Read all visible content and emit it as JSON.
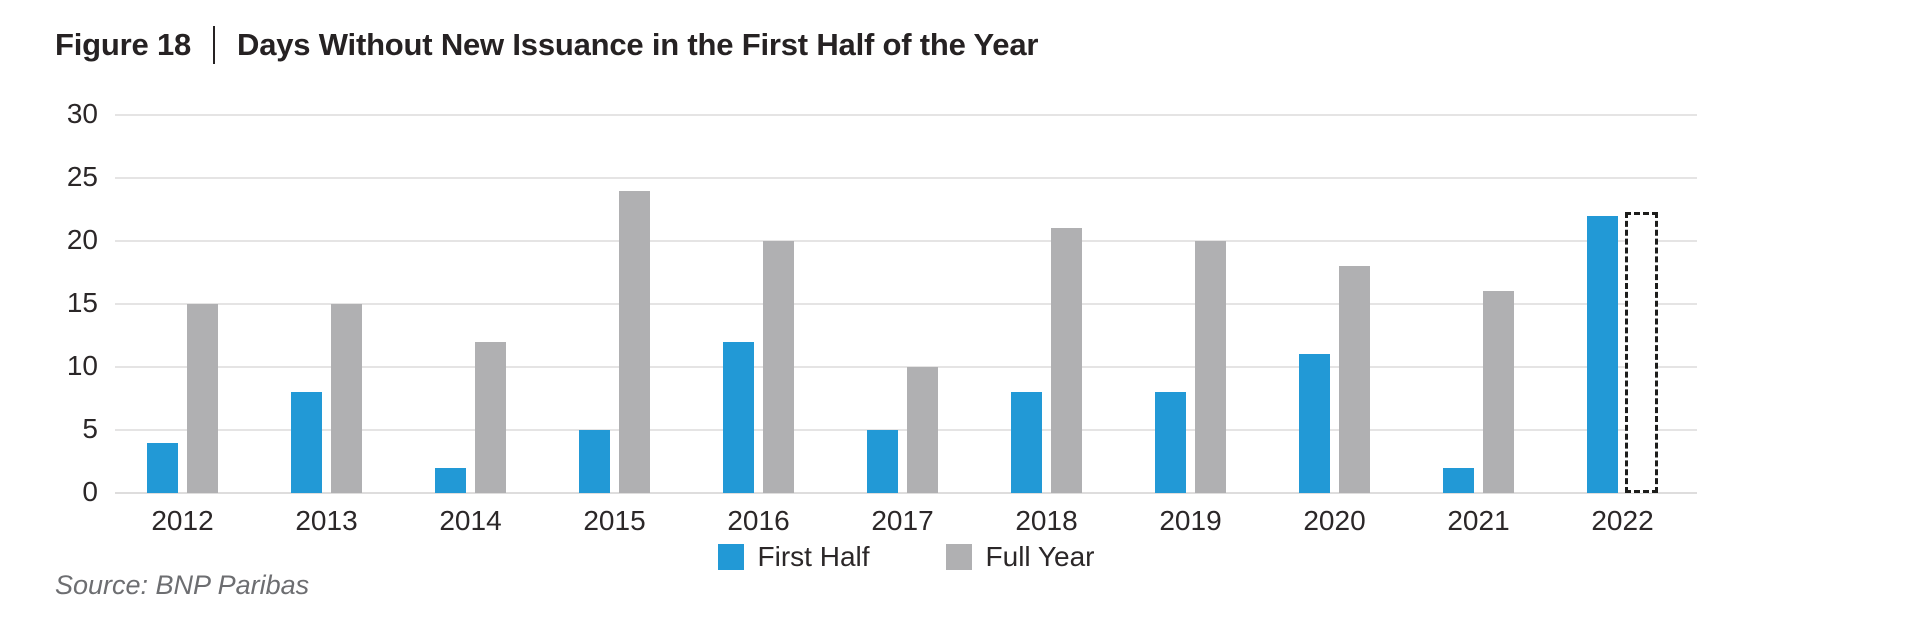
{
  "title": {
    "figure_label": "Figure 18",
    "separator": "|",
    "text": "Days Without New Issuance in the First Half of the Year"
  },
  "source": "Source: BNP Paribas",
  "legend": {
    "first_half_label": "First Half",
    "full_year_label": "Full Year"
  },
  "colors": {
    "first_half": "#2299d6",
    "full_year": "#b0b0b2",
    "dashed_outline": "#1d1d1b",
    "gridline": "#e5e4e4",
    "text": "#2b2728",
    "source_text": "#6d6e71"
  },
  "chart_data": {
    "type": "bar",
    "title": "Figure 18 | Days Without New Issuance in the First Half of the Year",
    "categories": [
      "2012",
      "2013",
      "2014",
      "2015",
      "2016",
      "2017",
      "2018",
      "2019",
      "2020",
      "2021",
      "2022"
    ],
    "series": [
      {
        "name": "First Half",
        "color": "#2299d6",
        "values": [
          4,
          8,
          2,
          5,
          12,
          5,
          8,
          8,
          11,
          2,
          22
        ]
      },
      {
        "name": "Full Year",
        "color": "#b0b0b2",
        "values": [
          15,
          15,
          12,
          24,
          20,
          10,
          21,
          20,
          18,
          16,
          22
        ],
        "dashed_outline_indices": [
          10
        ],
        "note": "2022 full-year bar shown as dashed outline (year incomplete)"
      }
    ],
    "xlabel": "",
    "ylabel": "",
    "ylim": [
      0,
      30
    ],
    "yticks": [
      0,
      5,
      10,
      15,
      20,
      25,
      30
    ],
    "grid": "horizontal",
    "legend_position": "bottom-center"
  }
}
